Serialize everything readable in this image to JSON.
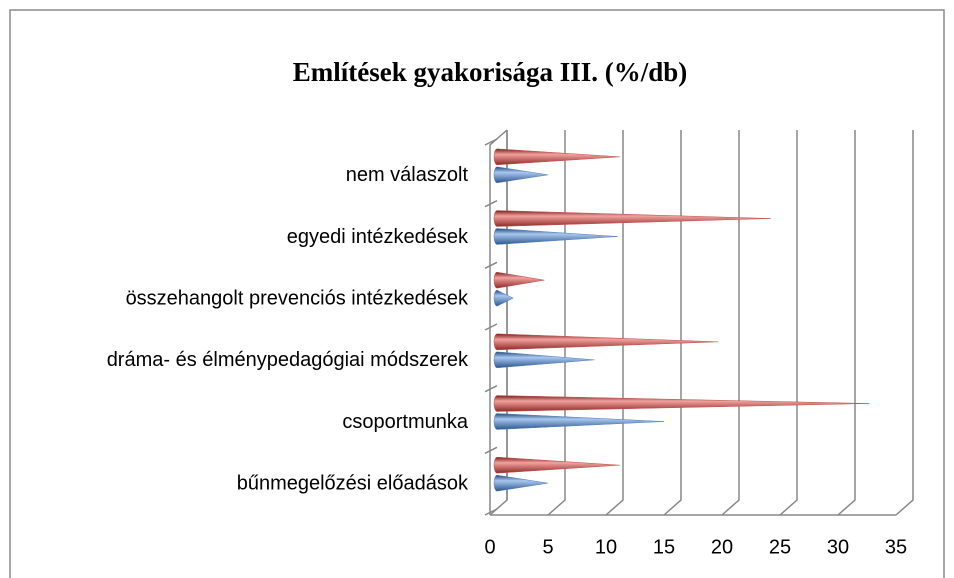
{
  "chart_data": {
    "type": "cone-bar",
    "title": "Említések gyakorisága III. (%/db)",
    "categories": [
      "nem válaszolt",
      "egyedi intézkedések",
      "összehangolt prevenciós intézkedések",
      "dráma- és élménypedagógiai módszerek",
      "csoportmunka",
      "bűnmegelőzési előadások"
    ],
    "series": [
      {
        "color": "#c0504d",
        "values": [
          10.5,
          23.5,
          4,
          19,
          32,
          10.5
        ]
      },
      {
        "color": "#4f81bd",
        "values": [
          5,
          11,
          2,
          9,
          15,
          5
        ]
      }
    ],
    "xlim": [
      0,
      35
    ],
    "xticks": [
      0,
      5,
      10,
      15,
      20,
      25,
      30,
      35
    ],
    "grid": true
  }
}
